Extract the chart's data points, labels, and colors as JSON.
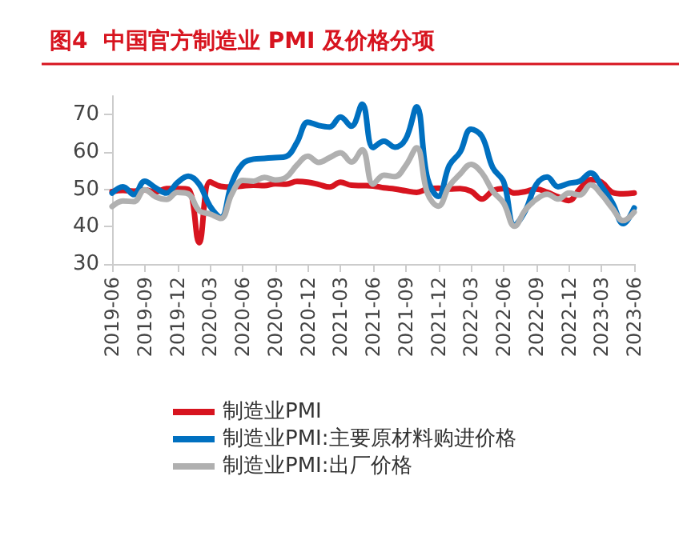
{
  "chart_data": {
    "type": "line",
    "title": "图4  中国官方制造业 PMI 及价格分项",
    "categories": [
      "2019-06",
      null,
      null,
      "2019-09",
      null,
      null,
      "2019-12",
      null,
      null,
      "2020-03",
      null,
      null,
      "2020-06",
      null,
      null,
      "2020-09",
      null,
      null,
      "2020-12",
      null,
      null,
      "2021-03",
      null,
      null,
      "2021-06",
      null,
      null,
      "2021-09",
      null,
      null,
      "2021-12",
      null,
      null,
      "2022-03",
      null,
      null,
      "2022-06",
      null,
      null,
      "2022-09",
      null,
      null,
      "2022-12",
      null,
      null,
      "2023-03",
      null,
      null,
      "2023-06"
    ],
    "series": [
      {
        "name": "制造业PMI",
        "color": "#d7141f",
        "values": [
          49.4,
          49.7,
          49.5,
          49.8,
          49.3,
          50.2,
          50.2,
          50.0,
          35.7,
          52.0,
          50.8,
          50.6,
          50.9,
          51.1,
          51.0,
          51.5,
          51.4,
          52.1,
          51.9,
          51.3,
          50.6,
          51.9,
          51.1,
          51.0,
          50.9,
          50.4,
          50.1,
          49.6,
          49.2,
          50.1,
          50.3,
          50.1,
          50.2,
          49.5,
          47.4,
          49.6,
          50.2,
          49.0,
          49.4,
          50.1,
          49.2,
          48.0,
          47.0,
          50.1,
          52.6,
          51.9,
          49.2,
          48.8,
          49.0
        ]
      },
      {
        "name": "制造业PMI:主要原材料购进价格",
        "color": "#0070c0",
        "values": [
          49.0,
          50.7,
          48.6,
          52.2,
          50.4,
          49.0,
          51.8,
          53.5,
          51.4,
          45.5,
          42.5,
          51.6,
          56.8,
          58.1,
          58.3,
          58.5,
          58.8,
          62.6,
          68.0,
          67.1,
          66.7,
          69.4,
          66.9,
          72.8,
          61.2,
          62.9,
          61.3,
          63.5,
          72.1,
          52.9,
          48.1,
          56.4,
          60.0,
          66.1,
          64.2,
          55.8,
          52.0,
          40.4,
          44.3,
          51.3,
          53.3,
          50.7,
          51.6,
          52.2,
          54.4,
          50.9,
          46.4,
          40.8,
          45.0
        ]
      },
      {
        "name": "制造业PMI:出厂价格",
        "color": "#b0b0b0",
        "values": [
          45.4,
          46.9,
          46.7,
          49.9,
          48.0,
          47.3,
          49.2,
          48.8,
          44.3,
          43.4,
          42.2,
          48.7,
          52.4,
          52.2,
          53.2,
          52.5,
          53.2,
          56.5,
          58.9,
          57.2,
          58.5,
          59.8,
          57.3,
          60.6,
          51.4,
          53.8,
          53.4,
          56.4,
          61.1,
          48.9,
          45.5,
          50.9,
          54.1,
          56.7,
          54.4,
          49.5,
          46.3,
          40.1,
          44.5,
          47.3,
          48.7,
          47.4,
          49.0,
          48.5,
          51.2,
          48.6,
          44.9,
          41.6,
          43.9
        ]
      }
    ],
    "ylim": [
      30,
      75
    ],
    "yticks": [
      30,
      40,
      50,
      60,
      70
    ],
    "grid": false,
    "legend": "bottom",
    "marker": "none",
    "line_style": "solid"
  }
}
